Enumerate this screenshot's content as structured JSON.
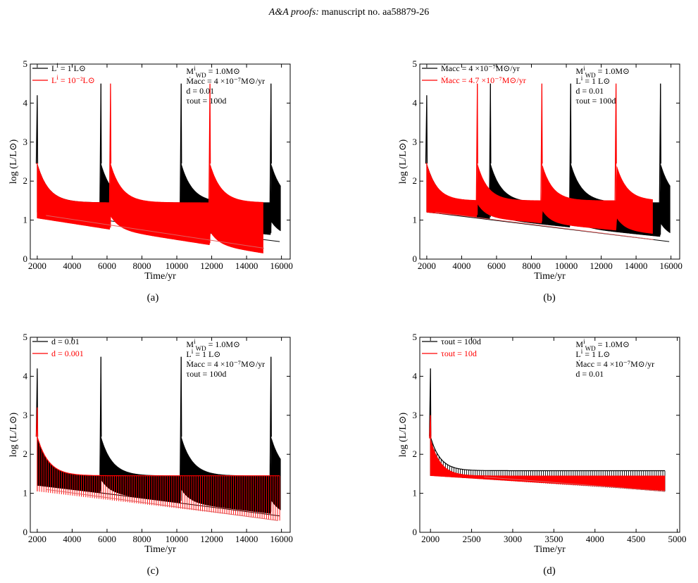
{
  "header": {
    "journal": "A&A proofs:",
    "manuscript": "manuscript no. aa58879-26"
  },
  "colors": {
    "series1": "#000000",
    "series2": "#ff0000",
    "trend2": "#e06060"
  },
  "chart_data": [
    {
      "panel_label": "(a)",
      "type": "line",
      "xlabel": "Time/yr",
      "ylabel": "log (L/L⊙)",
      "xlim": [
        1600,
        16500
      ],
      "ylim": [
        0,
        5
      ],
      "xticks": [
        2000,
        4000,
        6000,
        8000,
        10000,
        12000,
        14000,
        16000
      ],
      "yticks": [
        0,
        1,
        2,
        3,
        4,
        5
      ],
      "legend_position": "top-left",
      "annotations": [
        "M^i_WD = 1.0M⊙",
        "Ṁacc = 4 ×10⁻⁷M⊙/yr",
        "d = 0.01",
        "τout = 100d"
      ],
      "series": [
        {
          "name": "L^i = 1 L⊙",
          "color": "#000000",
          "t_start": 2000,
          "t_end": 15950,
          "peak_upper": 2.45,
          "base_upper": 1.45,
          "decay_time": 650,
          "lower_start": 1.2,
          "lower_end": 0.6,
          "flashes": [
            2000,
            5650,
            10250,
            15400
          ],
          "flash_peaks": [
            4.2,
            4.5,
            4.5,
            4.5
          ],
          "trend": {
            "x": [
              2700,
              15900
            ],
            "y": [
              1.17,
              0.45
            ]
          }
        },
        {
          "name": "L^i = 10⁻²L⊙",
          "color": "#ff0000",
          "t_start": 2000,
          "t_end": 14950,
          "peak_upper": 2.45,
          "base_upper": 1.45,
          "decay_time": 650,
          "lower_start": 1.05,
          "lower_end": 0.15,
          "flashes": [
            2000,
            6200,
            11900
          ],
          "flash_peaks": [
            2.45,
            4.5,
            4.5
          ],
          "trend": {
            "x": [
              2500,
              15000
            ],
            "y": [
              1.12,
              0.28
            ]
          }
        }
      ]
    },
    {
      "panel_label": "(b)",
      "type": "line",
      "xlabel": "Time/yr",
      "ylabel": "log (L/L⊙)",
      "xlim": [
        1600,
        16500
      ],
      "ylim": [
        0,
        5
      ],
      "xticks": [
        2000,
        4000,
        6000,
        8000,
        10000,
        12000,
        14000,
        16000
      ],
      "yticks": [
        0,
        1,
        2,
        3,
        4,
        5
      ],
      "legend_position": "top-left",
      "annotations": [
        "M^i_WD = 1.0M⊙",
        "L^i = 1 L⊙",
        "d = 0.01",
        "τout = 100d"
      ],
      "series": [
        {
          "name": "Ṁacc = 4 ×10⁻⁷M⊙/yr",
          "color": "#000000",
          "t_start": 2000,
          "t_end": 15950,
          "peak_upper": 2.45,
          "base_upper": 1.45,
          "decay_time": 650,
          "lower_start": 1.2,
          "lower_end": 0.55,
          "flashes": [
            2000,
            5650,
            10250,
            15400
          ],
          "flash_peaks": [
            4.2,
            4.5,
            4.5,
            4.5
          ],
          "trend": {
            "x": [
              2700,
              15900
            ],
            "y": [
              1.17,
              0.45
            ]
          }
        },
        {
          "name": "Ṁacc = 4.7 ×10⁻⁷M⊙/yr",
          "color": "#ff0000",
          "t_start": 2000,
          "t_end": 14950,
          "peak_upper": 2.45,
          "base_upper": 1.5,
          "decay_time": 600,
          "lower_start": 1.2,
          "lower_end": 0.65,
          "flashes": [
            2000,
            4900,
            8600,
            12850
          ],
          "flash_peaks": [
            2.45,
            4.5,
            4.5,
            4.5
          ],
          "trend": {
            "x": [
              2500,
              15000
            ],
            "y": [
              1.2,
              0.5
            ]
          }
        }
      ]
    },
    {
      "panel_label": "(c)",
      "type": "line",
      "xlabel": "Time/yr",
      "ylabel": "log (L/L⊙)",
      "xlim": [
        1600,
        16500
      ],
      "ylim": [
        0,
        5
      ],
      "xticks": [
        2000,
        4000,
        6000,
        8000,
        10000,
        12000,
        14000,
        16000
      ],
      "yticks": [
        0,
        1,
        2,
        3,
        4,
        5
      ],
      "legend_position": "top-left",
      "annotations": [
        "M^i_WD = 1.0M⊙",
        "L^i = 1 L⊙",
        "Ṁacc = 4 ×10⁻⁷M⊙/yr",
        "τout = 100d"
      ],
      "series": [
        {
          "name": "d = 0.01",
          "color": "#000000",
          "t_start": 2000,
          "t_end": 15950,
          "peak_upper": 2.45,
          "base_upper": 1.45,
          "decay_time": 650,
          "lower_start": 1.2,
          "lower_end": 0.45,
          "flashes": [
            2000,
            5650,
            10250,
            15400
          ],
          "flash_peaks": [
            4.2,
            4.5,
            4.5,
            4.5
          ],
          "trend": {
            "x": [
              2700,
              15900
            ],
            "y": [
              1.18,
              0.42
            ]
          }
        },
        {
          "name": "d = 0.001",
          "color": "#ff0000",
          "style": "spikes",
          "t_start": 2000,
          "t_end": 15900,
          "peak_upper": 2.45,
          "base_upper": 1.45,
          "decay_time": 650,
          "lower_start": 1.05,
          "lower_end": 0.3,
          "flashes": [
            2000
          ],
          "flash_peaks": [
            3.2
          ],
          "trend": {
            "x": [
              2500,
              15800
            ],
            "y": [
              1.1,
              0.3
            ]
          }
        }
      ]
    },
    {
      "panel_label": "(d)",
      "type": "line",
      "xlabel": "Time/yr",
      "ylabel": "log (L/L⊙)",
      "xlim": [
        1870,
        5030
      ],
      "ylim": [
        0,
        5
      ],
      "xticks": [
        2000,
        2500,
        3000,
        3500,
        4000,
        4500,
        5000
      ],
      "yticks": [
        0,
        1,
        2,
        3,
        4,
        5
      ],
      "legend_position": "top-left",
      "annotations": [
        "M^i_WD = 1.0M⊙",
        "L^i = 1 L⊙",
        "Ṁacc = 4 ×10⁻⁷M⊙/yr",
        "d = 0.01"
      ],
      "series": [
        {
          "name": "τout = 100d",
          "color": "#000000",
          "style": "spikes",
          "t_start": 2000,
          "t_end": 4850,
          "peak_upper": 2.45,
          "base_upper": 1.58,
          "decay_time": 120,
          "lower_start": 1.45,
          "lower_end": 1.05,
          "flashes": [
            2000
          ],
          "flash_peaks": [
            4.2
          ],
          "trend": {
            "x": [
              2650,
              4850
            ],
            "y": [
              1.42,
              1.05
            ]
          }
        },
        {
          "name": "τout = 10d",
          "color": "#ff0000",
          "t_start": 2000,
          "t_end": 4850,
          "peak_upper": 2.4,
          "base_upper": 1.45,
          "decay_time": 120,
          "lower_start": 1.45,
          "lower_end": 1.07,
          "flashes": [
            2000
          ],
          "flash_peaks": [
            3.0
          ],
          "trend": {
            "x": [
              2650,
              4850
            ],
            "y": [
              1.42,
              1.05
            ]
          }
        }
      ]
    }
  ]
}
